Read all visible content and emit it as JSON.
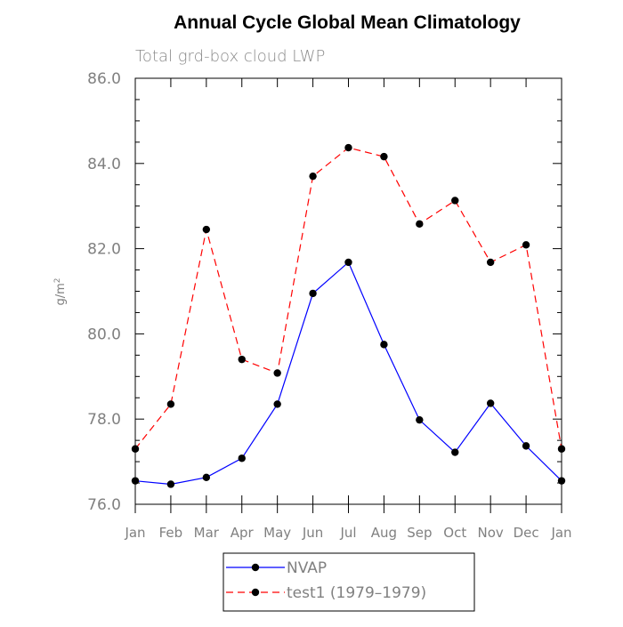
{
  "chart_data": {
    "type": "line",
    "title": "Annual Cycle Global Mean Climatology",
    "subtitle": "Total grd-box cloud LWP",
    "ylabel": "g/m",
    "ylabel_superscript": "2",
    "xlabel": "",
    "categories": [
      "Jan",
      "Feb",
      "Mar",
      "Apr",
      "May",
      "Jun",
      "Jul",
      "Aug",
      "Sep",
      "Oct",
      "Nov",
      "Dec",
      "Jan"
    ],
    "ylim": [
      76.0,
      86.0
    ],
    "yticks": [
      "76.0",
      "78.0",
      "80.0",
      "82.0",
      "84.0",
      "86.0"
    ],
    "grid": false,
    "legend_position": "bottom",
    "series": [
      {
        "name": "NVAP",
        "color": "#0000ff",
        "style": "solid",
        "marker": "filled-circle",
        "values": [
          76.55,
          76.47,
          76.63,
          77.08,
          78.35,
          80.95,
          81.68,
          79.75,
          77.98,
          77.22,
          78.37,
          77.37,
          76.55
        ]
      },
      {
        "name": "test1 (1979–1979)",
        "color": "#ff0000",
        "style": "dashed",
        "marker": "filled-circle",
        "values": [
          77.3,
          78.35,
          82.45,
          79.4,
          79.08,
          83.7,
          84.37,
          84.16,
          82.58,
          83.13,
          81.68,
          82.09,
          77.3
        ]
      }
    ]
  }
}
